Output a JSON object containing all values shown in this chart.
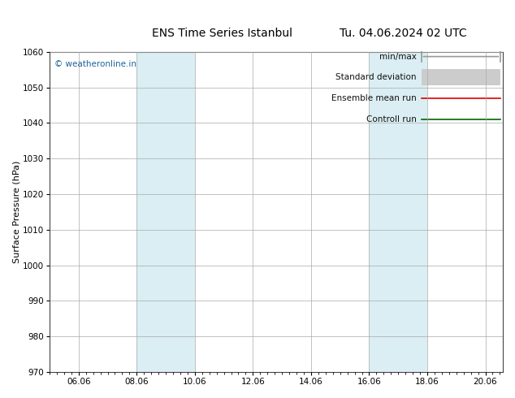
{
  "title_left": "ENS Time Series Istanbul",
  "title_right": "Tu. 04.06.2024 02 UTC",
  "ylabel": "Surface Pressure (hPa)",
  "ylim": [
    970,
    1060
  ],
  "yticks": [
    970,
    980,
    990,
    1000,
    1010,
    1020,
    1030,
    1040,
    1050,
    1060
  ],
  "xtick_labels": [
    "06.06",
    "08.06",
    "10.06",
    "12.06",
    "14.06",
    "16.06",
    "18.06",
    "20.06"
  ],
  "xtick_positions": [
    1.0,
    3.0,
    5.0,
    7.0,
    9.0,
    11.0,
    13.0,
    15.0
  ],
  "xlim": [
    0.0,
    15.6
  ],
  "shaded_bands": [
    {
      "x_start": 3.0,
      "x_end": 5.0,
      "color": "#daeef3"
    },
    {
      "x_start": 11.0,
      "x_end": 13.0,
      "color": "#daeef3"
    }
  ],
  "watermark": "© weatheronline.in",
  "watermark_color": "#1a6699",
  "legend_items": [
    {
      "label": "min/max",
      "color": "#999999",
      "lw": 1.2,
      "style": "minmax"
    },
    {
      "label": "Standard deviation",
      "color": "#cccccc",
      "lw": 7,
      "style": "thick"
    },
    {
      "label": "Ensemble mean run",
      "color": "#dd0000",
      "lw": 1.2,
      "style": "line"
    },
    {
      "label": "Controll run",
      "color": "#006600",
      "lw": 1.2,
      "style": "line"
    }
  ],
  "bg_color": "#ffffff",
  "plot_bg_color": "#ffffff",
  "grid_color": "#aaaaaa",
  "title_fontsize": 10,
  "tick_fontsize": 7.5,
  "ylabel_fontsize": 8,
  "legend_fontsize": 7.5
}
